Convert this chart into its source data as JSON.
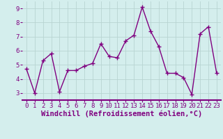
{
  "x": [
    0,
    1,
    2,
    3,
    4,
    5,
    6,
    7,
    8,
    9,
    10,
    11,
    12,
    13,
    14,
    15,
    16,
    17,
    18,
    19,
    20,
    21,
    22,
    23
  ],
  "y": [
    4.7,
    3.0,
    5.3,
    5.8,
    3.1,
    4.6,
    4.6,
    4.9,
    5.1,
    6.5,
    5.6,
    5.5,
    6.7,
    7.1,
    9.1,
    7.4,
    6.3,
    4.4,
    4.4,
    4.1,
    2.9,
    7.2,
    7.7,
    4.4
  ],
  "line_color": "#800080",
  "marker": "+",
  "markersize": 4,
  "linewidth": 1.0,
  "xlabel": "Windchill (Refroidissement éolien,°C)",
  "xlim": [
    -0.5,
    23.5
  ],
  "ylim": [
    2.5,
    9.5
  ],
  "yticks": [
    3,
    4,
    5,
    6,
    7,
    8,
    9
  ],
  "xticks": [
    0,
    1,
    2,
    3,
    4,
    5,
    6,
    7,
    8,
    9,
    10,
    11,
    12,
    13,
    14,
    15,
    16,
    17,
    18,
    19,
    20,
    21,
    22,
    23
  ],
  "bg_color": "#d4eeed",
  "grid_color": "#b8d4d2",
  "tick_fontsize": 6.5,
  "xlabel_fontsize": 7.5,
  "axis_color": "#800080"
}
